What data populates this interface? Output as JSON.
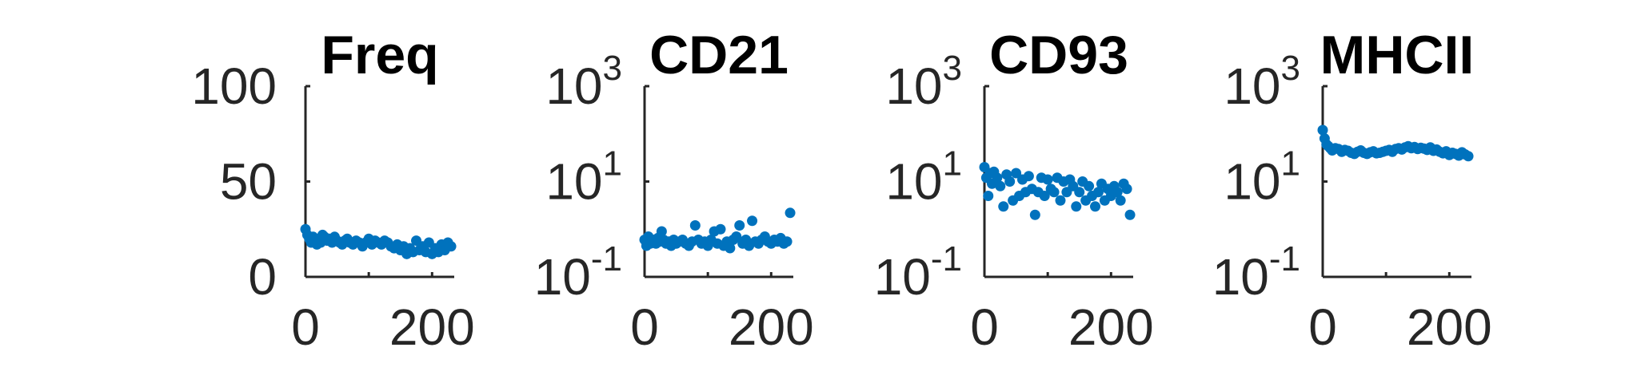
{
  "colors": {
    "marker": "#0072BD",
    "axis": "#262626",
    "title": "#000000",
    "background": "#ffffff"
  },
  "chart_data": [
    {
      "type": "scatter",
      "title": "Freq",
      "xlabel": "",
      "ylabel": "",
      "xlim": [
        0,
        235
      ],
      "ylim": [
        0,
        100
      ],
      "yscale": "linear",
      "grid": false,
      "x_ticks": [
        0,
        200
      ],
      "x_tick_labels": [
        "0",
        "200"
      ],
      "y_ticks": [
        0,
        50,
        100
      ],
      "y_tick_labels": [
        {
          "base": "0",
          "exp": ""
        },
        {
          "base": "50",
          "exp": ""
        },
        {
          "base": "100",
          "exp": ""
        }
      ],
      "series": [
        {
          "x": [
            0,
            3,
            6,
            9,
            12,
            15,
            18,
            21,
            24,
            27,
            30,
            34,
            38,
            42,
            46,
            50,
            54,
            58,
            62,
            66,
            70,
            75,
            80,
            85,
            90,
            95,
            100,
            105,
            110,
            115,
            120,
            125,
            130,
            135,
            140,
            145,
            150,
            155,
            160,
            165,
            170,
            175,
            180,
            185,
            190,
            195,
            200,
            205,
            210,
            215,
            220,
            225,
            230
          ],
          "y": [
            25,
            22,
            20,
            18,
            21,
            19,
            17,
            20,
            18,
            22,
            21,
            19,
            20,
            18,
            21,
            19,
            18,
            17,
            19,
            20,
            18,
            17,
            19,
            18,
            16,
            18,
            20,
            17,
            19,
            18,
            17,
            19,
            18,
            16,
            15,
            17,
            14,
            16,
            12,
            15,
            13,
            19,
            14,
            16,
            13,
            18,
            12,
            15,
            13,
            17,
            14,
            18,
            16
          ]
        }
      ]
    },
    {
      "type": "scatter",
      "title": "CD21",
      "xlabel": "",
      "ylabel": "",
      "xlim": [
        0,
        235
      ],
      "ylim": [
        0.1,
        1000
      ],
      "yscale": "log",
      "grid": false,
      "x_ticks": [
        0,
        200
      ],
      "x_tick_labels": [
        "0",
        "200"
      ],
      "y_ticks": [
        0.1,
        10,
        1000
      ],
      "y_tick_labels": [
        {
          "base": "10",
          "exp": "-1"
        },
        {
          "base": "10",
          "exp": "1"
        },
        {
          "base": "10",
          "exp": "3"
        }
      ],
      "series": [
        {
          "x": [
            0,
            3,
            6,
            9,
            12,
            15,
            18,
            21,
            24,
            27,
            30,
            34,
            38,
            42,
            46,
            50,
            55,
            60,
            65,
            70,
            75,
            80,
            85,
            90,
            95,
            100,
            105,
            110,
            115,
            120,
            125,
            130,
            135,
            140,
            145,
            150,
            155,
            160,
            165,
            170,
            175,
            180,
            185,
            190,
            195,
            200,
            205,
            210,
            215,
            220,
            225,
            230
          ],
          "y": [
            0.6,
            0.45,
            0.7,
            0.5,
            0.55,
            0.6,
            0.5,
            0.65,
            0.55,
            0.9,
            0.6,
            0.5,
            0.55,
            0.45,
            0.6,
            0.5,
            0.55,
            0.6,
            0.5,
            0.45,
            0.55,
            1.2,
            0.6,
            0.5,
            0.55,
            0.45,
            0.6,
            0.9,
            0.5,
            1.0,
            0.45,
            0.55,
            0.4,
            0.6,
            0.7,
            1.2,
            0.5,
            0.6,
            0.45,
            1.5,
            0.55,
            0.5,
            0.6,
            0.7,
            0.55,
            0.5,
            0.6,
            0.55,
            0.65,
            0.5,
            0.55,
            2.2
          ]
        }
      ]
    },
    {
      "type": "scatter",
      "title": "CD93",
      "xlabel": "",
      "ylabel": "",
      "xlim": [
        0,
        235
      ],
      "ylim": [
        0.1,
        1000
      ],
      "yscale": "log",
      "grid": false,
      "x_ticks": [
        0,
        200
      ],
      "x_tick_labels": [
        "0",
        "200"
      ],
      "y_ticks": [
        0.1,
        10,
        1000
      ],
      "y_tick_labels": [
        {
          "base": "10",
          "exp": "-1"
        },
        {
          "base": "10",
          "exp": "1"
        },
        {
          "base": "10",
          "exp": "3"
        }
      ],
      "series": [
        {
          "x": [
            0,
            3,
            6,
            9,
            12,
            15,
            20,
            25,
            30,
            35,
            40,
            45,
            50,
            55,
            60,
            65,
            70,
            75,
            80,
            85,
            90,
            95,
            100,
            105,
            110,
            115,
            120,
            125,
            130,
            135,
            140,
            145,
            150,
            155,
            160,
            165,
            170,
            175,
            180,
            185,
            190,
            195,
            200,
            205,
            210,
            215,
            220,
            225,
            230
          ],
          "y": [
            20,
            12,
            5,
            15,
            9,
            16,
            12,
            8,
            3,
            14,
            10,
            4,
            15,
            5,
            11,
            6,
            13,
            7,
            2,
            6,
            12,
            5,
            11,
            7,
            6,
            12,
            4,
            10,
            6,
            11,
            8,
            3,
            6,
            10,
            4,
            8,
            5,
            3,
            6,
            9,
            4,
            7,
            5,
            8,
            6,
            4,
            9,
            7,
            2
          ]
        }
      ]
    },
    {
      "type": "scatter",
      "title": "MHCII",
      "xlabel": "",
      "ylabel": "",
      "xlim": [
        0,
        235
      ],
      "ylim": [
        0.1,
        1000
      ],
      "yscale": "log",
      "grid": false,
      "x_ticks": [
        0,
        200
      ],
      "x_tick_labels": [
        "0",
        "200"
      ],
      "y_ticks": [
        0.1,
        10,
        1000
      ],
      "y_tick_labels": [
        {
          "base": "10",
          "exp": "-1"
        },
        {
          "base": "10",
          "exp": "1"
        },
        {
          "base": "10",
          "exp": "3"
        }
      ],
      "series": [
        {
          "x": [
            0,
            3,
            6,
            9,
            12,
            15,
            20,
            25,
            30,
            35,
            40,
            45,
            50,
            55,
            60,
            65,
            70,
            75,
            80,
            85,
            90,
            95,
            100,
            105,
            110,
            115,
            120,
            125,
            130,
            135,
            140,
            145,
            150,
            155,
            160,
            165,
            170,
            175,
            180,
            185,
            190,
            195,
            200,
            205,
            210,
            215,
            220,
            225,
            230
          ],
          "y": [
            120,
            80,
            60,
            55,
            50,
            45,
            50,
            48,
            42,
            46,
            44,
            40,
            38,
            42,
            45,
            40,
            38,
            41,
            43,
            39,
            40,
            42,
            44,
            46,
            42,
            48,
            50,
            47,
            52,
            55,
            50,
            53,
            48,
            51,
            49,
            46,
            52,
            44,
            47,
            42,
            39,
            43,
            36,
            40,
            38,
            35,
            41,
            37,
            34
          ]
        }
      ]
    }
  ]
}
